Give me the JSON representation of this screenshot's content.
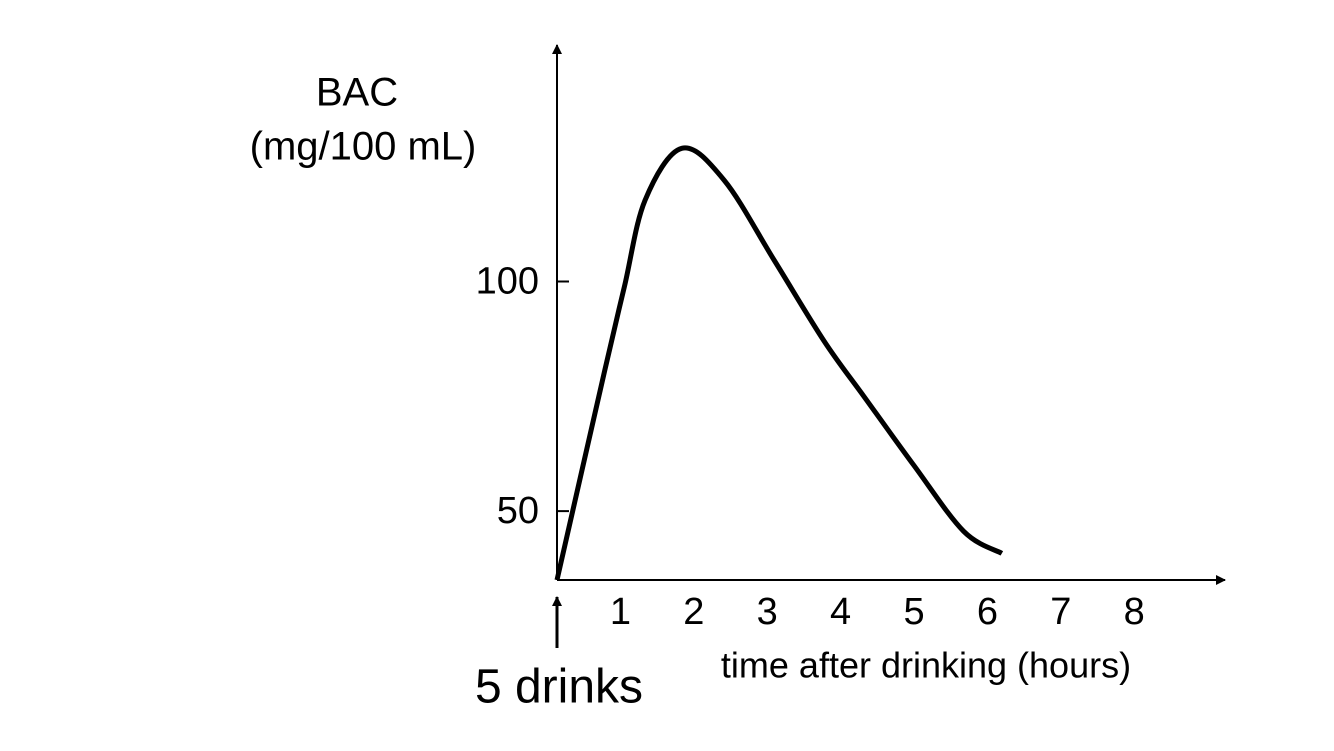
{
  "chart_data": {
    "type": "line",
    "y_label": [
      "BAC",
      "(mg/100 mL)"
    ],
    "x_label": "time after drinking (hours)",
    "annotation": "5 drinks",
    "x": [
      0,
      0.65,
      0.92,
      1.2,
      1.7,
      2.28,
      2.96,
      3.64,
      4.18,
      4.86,
      5.54,
      6.06
    ],
    "series": [
      {
        "color": "#000000",
        "values": [
          35,
          80.6,
          99,
          117.7,
          129,
          122,
          104.6,
          87,
          75,
          60,
          45.6,
          40.8
        ]
      }
    ],
    "xlim": [
      0,
      9.1
    ],
    "ylim": [
      35,
      151.5
    ],
    "xticks": [
      1,
      2,
      3,
      4,
      5,
      6,
      7,
      8
    ],
    "yticks": [
      50,
      100
    ]
  }
}
